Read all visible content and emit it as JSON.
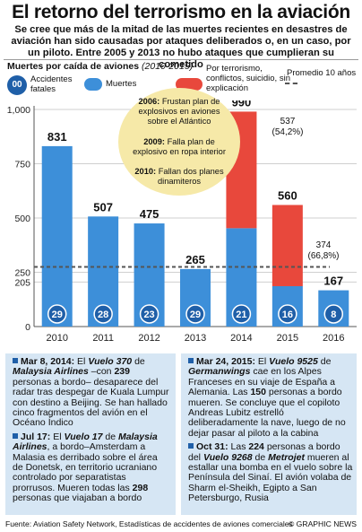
{
  "title": "El retorno del terrorismo en la aviación",
  "subtitle": "Se cree que más de la mitad de las muertes recientes en desastres de aviación han sido causadas por ataques deliberados o, en un caso, por un piloto. Entre 2005 y 2013 no hubo ataques que cumplieran su cometido",
  "chart_header": {
    "label": "Muertes por caída de aviones",
    "period": "(2010-2015)"
  },
  "legend": {
    "accidents_marker": "00",
    "accidents_label": "Accidentes fatales",
    "deaths_label": "Muertes",
    "terror_label": "Por terrorismo, conflictos, suicidio, sin explicación",
    "avg_label": "Promedio 10 años"
  },
  "colors": {
    "blue": "#3d8fd9",
    "red": "#e8483c",
    "navy": "#1f5fa8",
    "callout": "#f6e9a8",
    "panel": "#d6e6f4"
  },
  "chart_data": {
    "type": "bar",
    "categories": [
      "2010",
      "2011",
      "2012",
      "2013",
      "2014",
      "2015",
      "2016"
    ],
    "series": [
      {
        "name": "Muertes",
        "values": [
          831,
          507,
          475,
          265,
          453,
          186,
          167
        ]
      },
      {
        "name": "Por terrorismo, conflictos, suicidio, sin explicación",
        "values": [
          0,
          0,
          0,
          0,
          537,
          374,
          0
        ]
      }
    ],
    "totals": [
      831,
      507,
      475,
      265,
      990,
      560,
      167
    ],
    "fatal_accidents": [
      29,
      28,
      23,
      29,
      21,
      16,
      8
    ],
    "average_10_years": 275,
    "y_ticks": [
      "1,000",
      "750",
      "500",
      "250",
      "205",
      "0"
    ],
    "y_tick_values": [
      1000,
      750,
      500,
      250,
      205,
      0
    ],
    "ylim": [
      0,
      1000
    ],
    "annotations": [
      {
        "category": "2014",
        "text": "537",
        "sub": "(54,2%)"
      },
      {
        "category": "2015",
        "text": "374",
        "sub": "(66,8%)"
      }
    ]
  },
  "callout": [
    {
      "year": "2006:",
      "text": "Frustan plan de explosivos en aviones sobre el Atlántico"
    },
    {
      "year": "2009:",
      "text": "Falla plan de explosivo en ropa interior"
    },
    {
      "year": "2010:",
      "text": "Fallan dos planes dinamiteros"
    }
  ],
  "events_left": [
    {
      "date": "Mar 8, 2014:",
      "parts": [
        [
          "n",
          "El "
        ],
        [
          "i",
          "Vuelo 370"
        ],
        [
          "n",
          " de "
        ],
        [
          "i",
          "Malaysia Airlines"
        ],
        [
          "n",
          " –con "
        ],
        [
          "b",
          "239"
        ],
        [
          "n",
          " personas a bordo– desaparece del radar tras despegar de Kuala Lumpur con destino a Beijing. Se han hallado cinco fragmentos del avión en el Océano Índico"
        ]
      ]
    },
    {
      "date": "Jul 17:",
      "parts": [
        [
          "n",
          "El "
        ],
        [
          "i",
          "Vuelo 17"
        ],
        [
          "n",
          " de "
        ],
        [
          "i",
          "Malaysia Airlines"
        ],
        [
          "n",
          ", a bordo–Amsterdam a Malasia es derribado sobre el área de Donetsk, en territorio ucraniano controlado por separatistas prorrusos. Mueren todas las "
        ],
        [
          "b",
          "298"
        ],
        [
          "n",
          " personas que viajaban a bordo"
        ]
      ]
    }
  ],
  "events_right": [
    {
      "date": "Mar 24, 2015:",
      "parts": [
        [
          "n",
          "El "
        ],
        [
          "i",
          "Vuelo 9525"
        ],
        [
          "n",
          " de "
        ],
        [
          "i",
          "Germanwings"
        ],
        [
          "n",
          " cae en los Alpes Franceses en su viaje de España a Alemania. Las "
        ],
        [
          "b",
          "150"
        ],
        [
          "n",
          " personas a bordo mueren. Se concluye que el copiloto Andreas Lubitz estrelló deliberadamente la nave, luego de no dejar pasar al piloto a la cabina"
        ]
      ]
    },
    {
      "date": "Oct 31:",
      "parts": [
        [
          "n",
          "Las "
        ],
        [
          "b",
          "224"
        ],
        [
          "n",
          " personas a bordo del "
        ],
        [
          "i",
          "Vuelo 9268"
        ],
        [
          "n",
          " de "
        ],
        [
          "i",
          "Metrojet"
        ],
        [
          "n",
          " mueren al estallar una bomba en el vuelo sobre la Península del Sinaí. El avión volaba de Sharm el-Sheikh, Egipto a San Petersburgo, Rusia"
        ]
      ]
    }
  ],
  "footer": {
    "source": "Fuente: Aviation Safety Network, Estadísticas de accidentes de aviones comerciales",
    "credit": "© GRAPHIC NEWS"
  }
}
